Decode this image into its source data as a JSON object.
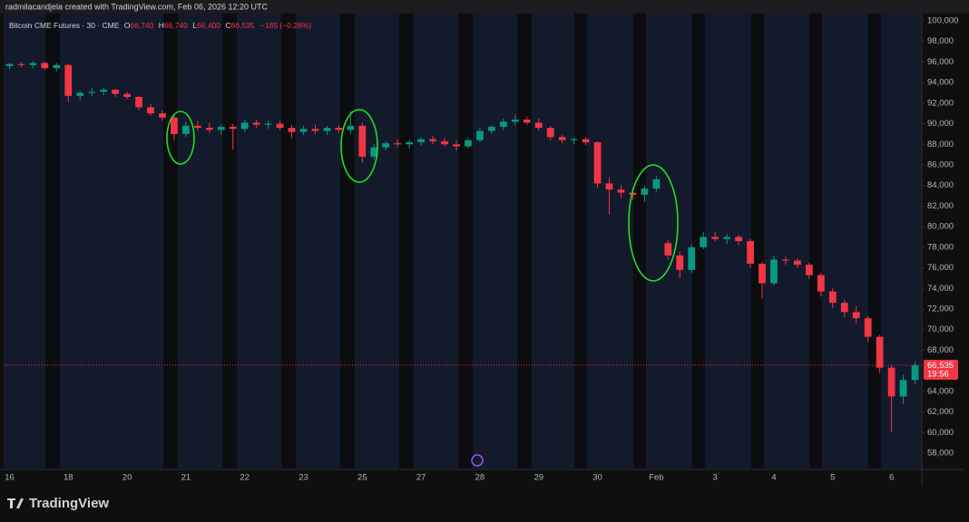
{
  "header": {
    "attribution": "radmilacandjela created with TradingView.com, Feb 06, 2026 12:20 UTC"
  },
  "footer": {
    "brand": "TradingView"
  },
  "chart_data": {
    "type": "candlestick",
    "title": "Bitcoin CME Futures · 30 · CME",
    "legend_values": [
      {
        "key": "O",
        "text": "66,740"
      },
      {
        "key": "H",
        "text": "66,740"
      },
      {
        "key": "L",
        "text": "66,400"
      },
      {
        "key": "C",
        "text": "66,535"
      }
    ],
    "change": "−185 (−0.28%)",
    "up_color": "#089981",
    "down_color": "#f23645",
    "categories": [
      "16",
      null,
      null,
      null,
      null,
      "18",
      null,
      null,
      null,
      null,
      "20",
      null,
      null,
      null,
      null,
      "21",
      null,
      null,
      null,
      null,
      "22",
      null,
      null,
      null,
      null,
      "23",
      null,
      null,
      null,
      null,
      "25",
      null,
      null,
      null,
      null,
      "27",
      null,
      null,
      null,
      null,
      "28",
      null,
      null,
      null,
      null,
      "29",
      null,
      null,
      null,
      null,
      "30",
      null,
      null,
      null,
      null,
      "Feb",
      null,
      null,
      null,
      null,
      "3",
      null,
      null,
      null,
      null,
      "4",
      null,
      null,
      null,
      null,
      "5",
      null,
      null,
      null,
      null,
      "6",
      null,
      null
    ],
    "ohlc": [
      [
        95600,
        95900,
        95300,
        95800
      ],
      [
        95800,
        96000,
        95500,
        95700
      ],
      [
        95700,
        96100,
        95400,
        95900
      ],
      [
        95900,
        96000,
        95200,
        95400
      ],
      [
        95400,
        95900,
        95100,
        95700
      ],
      [
        95700,
        95800,
        92100,
        92700
      ],
      [
        92700,
        93200,
        92300,
        93000
      ],
      [
        93000,
        93500,
        92700,
        93100
      ],
      [
        93100,
        93500,
        92800,
        93300
      ],
      [
        93300,
        93400,
        92600,
        92900
      ],
      [
        92900,
        93100,
        92400,
        92600
      ],
      [
        92600,
        92700,
        91300,
        91600
      ],
      [
        91600,
        91900,
        90800,
        91000
      ],
      [
        91000,
        91300,
        90300,
        90600
      ],
      [
        90600,
        90900,
        88400,
        89000
      ],
      [
        89000,
        90200,
        88700,
        89800
      ],
      [
        89800,
        90300,
        89300,
        89600
      ],
      [
        89600,
        90100,
        89100,
        89400
      ],
      [
        89400,
        89900,
        88900,
        89700
      ],
      [
        89700,
        90000,
        87500,
        89500
      ],
      [
        89500,
        90400,
        89200,
        90100
      ],
      [
        90100,
        90400,
        89600,
        89900
      ],
      [
        89900,
        90300,
        89500,
        90000
      ],
      [
        90000,
        90300,
        89400,
        89600
      ],
      [
        89600,
        89900,
        88600,
        89200
      ],
      [
        89200,
        89800,
        88900,
        89500
      ],
      [
        89500,
        89900,
        89000,
        89300
      ],
      [
        89300,
        89800,
        88900,
        89600
      ],
      [
        89600,
        89900,
        89100,
        89400
      ],
      [
        89400,
        91200,
        89000,
        89800
      ],
      [
        89800,
        90100,
        86200,
        86800
      ],
      [
        86800,
        88000,
        86500,
        87700
      ],
      [
        87700,
        88300,
        87400,
        88100
      ],
      [
        88100,
        88500,
        87700,
        88000
      ],
      [
        88000,
        88400,
        87600,
        88200
      ],
      [
        88200,
        88700,
        87900,
        88500
      ],
      [
        88500,
        88800,
        88000,
        88300
      ],
      [
        88300,
        88600,
        87800,
        88000
      ],
      [
        88000,
        88400,
        87400,
        87800
      ],
      [
        87800,
        88600,
        87600,
        88400
      ],
      [
        88400,
        89600,
        88200,
        89300
      ],
      [
        89300,
        89900,
        89000,
        89700
      ],
      [
        89700,
        90500,
        89400,
        90200
      ],
      [
        90200,
        90900,
        89800,
        90400
      ],
      [
        90400,
        90700,
        89900,
        90100
      ],
      [
        90100,
        90500,
        89300,
        89600
      ],
      [
        89600,
        89800,
        88400,
        88700
      ],
      [
        88700,
        88900,
        88100,
        88400
      ],
      [
        88400,
        88700,
        88000,
        88500
      ],
      [
        88500,
        88700,
        87900,
        88200
      ],
      [
        88200,
        88300,
        83800,
        84200
      ],
      [
        84200,
        84800,
        81200,
        83600
      ],
      [
        83600,
        84000,
        82800,
        83300
      ],
      [
        83300,
        83800,
        82600,
        83100
      ],
      [
        83100,
        84000,
        82400,
        83700
      ],
      [
        83700,
        84900,
        83400,
        84600
      ],
      [
        78400,
        78700,
        76800,
        77200
      ],
      [
        77200,
        77600,
        75000,
        75800
      ],
      [
        75800,
        78300,
        75500,
        78000
      ],
      [
        78000,
        79500,
        77800,
        79000
      ],
      [
        79000,
        79500,
        78600,
        78800
      ],
      [
        78800,
        79300,
        78300,
        79000
      ],
      [
        79000,
        79200,
        78200,
        78600
      ],
      [
        78600,
        78800,
        76000,
        76400
      ],
      [
        76400,
        76600,
        73000,
        74500
      ],
      [
        74500,
        77200,
        74300,
        76800
      ],
      [
        76800,
        77100,
        76300,
        76700
      ],
      [
        76700,
        76900,
        76000,
        76300
      ],
      [
        76300,
        76500,
        74900,
        75300
      ],
      [
        75300,
        75500,
        73200,
        73700
      ],
      [
        73700,
        74000,
        72100,
        72600
      ],
      [
        72600,
        72900,
        71200,
        71700
      ],
      [
        71700,
        72300,
        70600,
        71100
      ],
      [
        71100,
        71300,
        68800,
        69300
      ],
      [
        69300,
        69500,
        65800,
        66300
      ],
      [
        66300,
        66600,
        60000,
        63500
      ],
      [
        63500,
        65600,
        62800,
        65100
      ],
      [
        65100,
        66900,
        64700,
        66535
      ]
    ],
    "last_price": {
      "value": 66535,
      "label": "66,535"
    },
    "countdown": "19:56",
    "ylim": [
      56500,
      100700
    ],
    "yticks": [
      {
        "value": 58000,
        "label": "58,000"
      },
      {
        "value": 60000,
        "label": "60,000"
      },
      {
        "value": 62000,
        "label": "62,000"
      },
      {
        "value": 64000,
        "label": "64,000"
      },
      {
        "value": 66000,
        "label": "66,000"
      },
      {
        "value": 68000,
        "label": "68,000"
      },
      {
        "value": 70000,
        "label": "70,000"
      },
      {
        "value": 72000,
        "label": "72,000"
      },
      {
        "value": 74000,
        "label": "74,000"
      },
      {
        "value": 76000,
        "label": "76,000"
      },
      {
        "value": 78000,
        "label": "78,000"
      },
      {
        "value": 80000,
        "label": "80,000"
      },
      {
        "value": 82000,
        "label": "82,000"
      },
      {
        "value": 84000,
        "label": "84,000"
      },
      {
        "value": 86000,
        "label": "86,000"
      },
      {
        "value": 88000,
        "label": "88,000"
      },
      {
        "value": 90000,
        "label": "90,000"
      },
      {
        "value": 92000,
        "label": "92,000"
      },
      {
        "value": 94000,
        "label": "94,000"
      },
      {
        "value": 96000,
        "label": "96,000"
      },
      {
        "value": 98000,
        "label": "98,000"
      },
      {
        "value": 100000,
        "label": "100,000"
      }
    ]
  }
}
